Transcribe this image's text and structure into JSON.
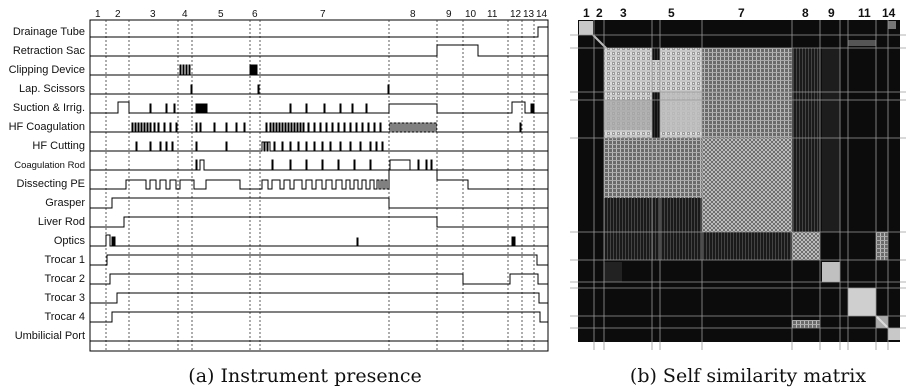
{
  "panel_a": {
    "caption": "(a) Instrument presence",
    "phase_numbers": [
      "1",
      "2",
      "3",
      "4",
      "5",
      "6",
      "7",
      "8",
      "9",
      "10",
      "11",
      "12",
      "13",
      "14"
    ],
    "instruments": [
      "Drainage Tube",
      "Retraction Sac",
      "Clipping Device",
      "Lap. Scissors",
      "Suction & Irrig.",
      "HF Coagulation",
      "HF Cutting",
      "Coagulation Rod",
      "Dissecting PE",
      "Grasper",
      "Liver Rod",
      "Optics",
      "Trocar 1",
      "Trocar 2",
      "Trocar 3",
      "Trocar 4",
      "Umbilicial Port"
    ]
  },
  "panel_b": {
    "caption": "(b) Self similarity matrix",
    "phase_numbers": [
      "1",
      "2",
      "3",
      "5",
      "7",
      "8",
      "9",
      "11",
      "14"
    ]
  },
  "chart_data": {
    "type": "heatmap",
    "panels": [
      {
        "name": "Instrument presence",
        "rows": [
          "Drainage Tube",
          "Retraction Sac",
          "Clipping Device",
          "Lap. Scissors",
          "Suction & Irrig.",
          "HF Coagulation",
          "HF Cutting",
          "Coagulation Rod",
          "Dissecting PE",
          "Grasper",
          "Liver Rod",
          "Optics",
          "Trocar 1",
          "Trocar 2",
          "Trocar 3",
          "Trocar 4",
          "Umbilicial Port"
        ],
        "phases": [
          "1",
          "2",
          "3",
          "4",
          "5",
          "6",
          "7",
          "8",
          "9",
          "10",
          "11",
          "12",
          "13",
          "14"
        ]
      },
      {
        "name": "Self similarity matrix",
        "phases": [
          "1",
          "2",
          "3",
          "5",
          "7",
          "8",
          "9",
          "11",
          "14"
        ]
      }
    ]
  }
}
